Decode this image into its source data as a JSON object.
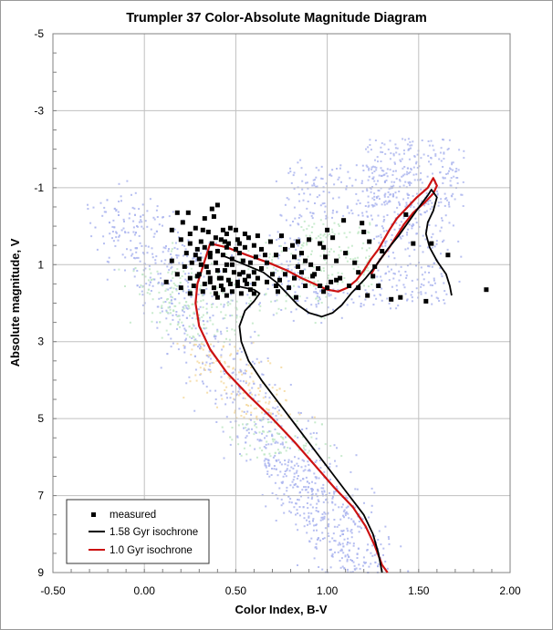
{
  "chart_data": {
    "type": "scatter",
    "title": "Trumpler 37 Color-Absolute Magnitude Diagram",
    "xlabel": "Color Index, B-V",
    "ylabel": "Absolute magnitude, V",
    "xlim": [
      -0.5,
      2.0
    ],
    "ylim": [
      9,
      -5
    ],
    "y_inverted": true,
    "x_ticks": [
      "-0.50",
      "0.00",
      "0.50",
      "1.00",
      "1.50",
      "2.00"
    ],
    "x_tick_values": [
      -0.5,
      0.0,
      0.5,
      1.0,
      1.5,
      2.0
    ],
    "y_ticks": [
      "-5",
      "-3",
      "-1",
      "1",
      "3",
      "5",
      "7",
      "9"
    ],
    "y_tick_values": [
      -5,
      -3,
      -1,
      1,
      3,
      5,
      7,
      9
    ],
    "grid": true,
    "legend_position": "bottom-left",
    "legend": [
      "measured",
      "1.58 Gyr isochrone",
      "1.0 Gyr isochrone"
    ],
    "colors": {
      "measured": "#000000",
      "iso_158": "#000000",
      "iso_10": "#cc1111",
      "grid": "#c0c0c0",
      "density_low": "#aab4ee",
      "density_mid": "#bfe8c6",
      "density_high": "#f4d9a0"
    },
    "series": [
      {
        "name": "measured",
        "kind": "points",
        "points": [
          [
            0.18,
            -0.35
          ],
          [
            0.24,
            -0.35
          ],
          [
            0.4,
            -0.55
          ],
          [
            0.37,
            -0.45
          ],
          [
            0.38,
            -0.25
          ],
          [
            0.21,
            -0.1
          ],
          [
            0.15,
            0.1
          ],
          [
            0.25,
            0.2
          ],
          [
            0.28,
            0.05
          ],
          [
            0.32,
            0.1
          ],
          [
            0.35,
            0.15
          ],
          [
            0.45,
            0.2
          ],
          [
            0.47,
            0.05
          ],
          [
            0.43,
            0.1
          ],
          [
            0.55,
            0.2
          ],
          [
            0.5,
            0.1
          ],
          [
            0.39,
            0.3
          ],
          [
            0.42,
            0.35
          ],
          [
            0.2,
            0.35
          ],
          [
            0.25,
            0.45
          ],
          [
            0.31,
            0.4
          ],
          [
            0.37,
            0.45
          ],
          [
            0.33,
            0.55
          ],
          [
            0.46,
            0.45
          ],
          [
            0.51,
            0.35
          ],
          [
            0.57,
            0.3
          ],
          [
            0.6,
            0.5
          ],
          [
            0.55,
            0.55
          ],
          [
            0.29,
            0.6
          ],
          [
            0.23,
            0.7
          ],
          [
            0.28,
            0.75
          ],
          [
            0.4,
            0.65
          ],
          [
            0.45,
            0.55
          ],
          [
            0.3,
            0.85
          ],
          [
            0.36,
            0.8
          ],
          [
            0.43,
            0.75
          ],
          [
            0.52,
            0.7
          ],
          [
            0.61,
            0.8
          ],
          [
            0.48,
            0.85
          ],
          [
            0.26,
            0.95
          ],
          [
            0.31,
            1.0
          ],
          [
            0.39,
            0.95
          ],
          [
            0.45,
            1.0
          ],
          [
            0.54,
            0.9
          ],
          [
            0.58,
            0.95
          ],
          [
            0.66,
            0.75
          ],
          [
            0.72,
            0.75
          ],
          [
            0.77,
            0.6
          ],
          [
            0.81,
            0.5
          ],
          [
            0.84,
            0.4
          ],
          [
            0.82,
            0.8
          ],
          [
            0.88,
            0.9
          ],
          [
            0.91,
            1.0
          ],
          [
            0.95,
            1.1
          ],
          [
            0.99,
            0.8
          ],
          [
            0.98,
            0.55
          ],
          [
            0.96,
            0.45
          ],
          [
            1.03,
            0.3
          ],
          [
            1.0,
            0.1
          ],
          [
            1.05,
            0.9
          ],
          [
            1.1,
            0.7
          ],
          [
            1.15,
            0.95
          ],
          [
            1.17,
            1.2
          ],
          [
            1.07,
            1.35
          ],
          [
            1.02,
            1.45
          ],
          [
            0.98,
            1.7
          ],
          [
            0.88,
            1.55
          ],
          [
            0.79,
            1.6
          ],
          [
            0.72,
            1.55
          ],
          [
            0.67,
            1.45
          ],
          [
            0.62,
            1.35
          ],
          [
            0.57,
            1.3
          ],
          [
            0.52,
            1.25
          ],
          [
            0.49,
            1.2
          ],
          [
            0.44,
            1.15
          ],
          [
            0.4,
            1.15
          ],
          [
            0.35,
            1.2
          ],
          [
            0.3,
            1.25
          ],
          [
            0.25,
            1.35
          ],
          [
            0.18,
            1.25
          ],
          [
            0.12,
            1.45
          ],
          [
            0.2,
            1.6
          ],
          [
            0.27,
            1.55
          ],
          [
            0.33,
            1.5
          ],
          [
            0.36,
            1.45
          ],
          [
            0.42,
            1.35
          ],
          [
            0.46,
            1.4
          ],
          [
            0.51,
            1.45
          ],
          [
            0.56,
            1.5
          ],
          [
            0.58,
            1.65
          ],
          [
            0.53,
            1.75
          ],
          [
            0.48,
            1.7
          ],
          [
            0.43,
            1.65
          ],
          [
            0.38,
            1.6
          ],
          [
            0.32,
            1.7
          ],
          [
            0.25,
            1.75
          ],
          [
            0.4,
            1.85
          ],
          [
            0.45,
            1.8
          ],
          [
            0.51,
            1.55
          ],
          [
            0.55,
            1.4
          ],
          [
            0.6,
            1.2
          ],
          [
            0.64,
            1.1
          ],
          [
            0.7,
            1.25
          ],
          [
            0.74,
            1.4
          ],
          [
            0.77,
            1.25
          ],
          [
            0.82,
            1.35
          ],
          [
            0.86,
            1.2
          ],
          [
            0.92,
            1.3
          ],
          [
            0.96,
            1.55
          ],
          [
            1.0,
            1.6
          ],
          [
            1.12,
            1.55
          ],
          [
            1.17,
            1.6
          ],
          [
            1.22,
            1.8
          ],
          [
            1.28,
            1.55
          ],
          [
            1.35,
            1.9
          ],
          [
            1.4,
            1.85
          ],
          [
            1.25,
            1.3
          ],
          [
            1.26,
            1.05
          ],
          [
            1.3,
            0.65
          ],
          [
            1.47,
            0.45
          ],
          [
            1.57,
            0.45
          ],
          [
            1.66,
            0.75
          ],
          [
            1.54,
            1.95
          ],
          [
            1.87,
            1.65
          ],
          [
            1.09,
            -0.15
          ],
          [
            1.19,
            -0.08
          ],
          [
            1.43,
            -0.3
          ],
          [
            1.23,
            0.4
          ],
          [
            0.86,
            0.7
          ],
          [
            0.9,
            0.35
          ],
          [
            0.75,
            0.25
          ],
          [
            0.69,
            0.4
          ],
          [
            0.64,
            0.6
          ],
          [
            0.67,
            0.95
          ],
          [
            0.84,
            1.05
          ],
          [
            0.93,
            1.25
          ],
          [
            0.73,
            1.7
          ],
          [
            0.83,
            1.85
          ],
          [
            0.6,
            1.75
          ],
          [
            0.36,
            0.7
          ],
          [
            0.34,
            1.05
          ],
          [
            0.22,
            1.05
          ],
          [
            0.15,
            0.9
          ],
          [
            0.5,
            0.6
          ],
          [
            0.48,
            1.0
          ],
          [
            0.41,
            1.35
          ],
          [
            0.29,
            1.3
          ],
          [
            0.54,
            1.2
          ],
          [
            0.39,
            1.75
          ],
          [
            0.44,
            0.4
          ],
          [
            0.33,
            -0.2
          ],
          [
            0.52,
            0.45
          ],
          [
            0.62,
            0.25
          ],
          [
            1.05,
            1.4
          ],
          [
            1.2,
            0.15
          ],
          [
            0.6,
            1.5
          ],
          [
            0.47,
            1.5
          ],
          [
            0.36,
            1.35
          ],
          [
            0.42,
            1.55
          ]
        ]
      },
      {
        "name": "1.58 Gyr isochrone",
        "kind": "line",
        "points": [
          [
            0.5,
            1.55
          ],
          [
            0.55,
            1.6
          ],
          [
            0.6,
            1.65
          ],
          [
            0.63,
            1.75
          ],
          [
            0.6,
            1.95
          ],
          [
            0.55,
            2.2
          ],
          [
            0.52,
            2.6
          ],
          [
            0.53,
            3.0
          ],
          [
            0.57,
            3.5
          ],
          [
            0.64,
            4.0
          ],
          [
            0.72,
            4.5
          ],
          [
            0.8,
            5.0
          ],
          [
            0.88,
            5.5
          ],
          [
            0.96,
            6.0
          ],
          [
            1.04,
            6.5
          ],
          [
            1.12,
            7.0
          ],
          [
            1.2,
            7.5
          ],
          [
            1.25,
            8.0
          ],
          [
            1.28,
            8.5
          ],
          [
            1.3,
            9.0
          ]
        ],
        "branch": [
          [
            0.42,
            0.75
          ],
          [
            0.55,
            1.0
          ],
          [
            0.65,
            1.2
          ],
          [
            0.72,
            1.45
          ],
          [
            0.78,
            1.75
          ],
          [
            0.84,
            2.05
          ],
          [
            0.9,
            2.25
          ],
          [
            0.97,
            2.35
          ],
          [
            1.03,
            2.25
          ],
          [
            1.08,
            2.05
          ],
          [
            1.13,
            1.75
          ],
          [
            1.17,
            1.55
          ],
          [
            1.21,
            1.35
          ],
          [
            1.27,
            1.0
          ],
          [
            1.33,
            0.6
          ],
          [
            1.39,
            0.25
          ],
          [
            1.45,
            -0.15
          ],
          [
            1.51,
            -0.55
          ],
          [
            1.55,
            -0.8
          ],
          [
            1.57,
            -0.95
          ],
          [
            1.6,
            -0.75
          ],
          [
            1.58,
            -0.4
          ],
          [
            1.55,
            -0.1
          ],
          [
            1.54,
            0.2
          ],
          [
            1.56,
            0.55
          ],
          [
            1.6,
            0.9
          ],
          [
            1.65,
            1.25
          ],
          [
            1.67,
            1.55
          ],
          [
            1.68,
            1.8
          ]
        ]
      },
      {
        "name": "1.0 Gyr isochrone",
        "kind": "line",
        "points": [
          [
            0.36,
            0.45
          ],
          [
            0.45,
            0.55
          ],
          [
            0.56,
            0.75
          ],
          [
            0.68,
            0.95
          ],
          [
            0.78,
            1.15
          ],
          [
            0.86,
            1.35
          ],
          [
            0.93,
            1.5
          ],
          [
            1.0,
            1.65
          ],
          [
            1.06,
            1.7
          ],
          [
            1.11,
            1.6
          ],
          [
            1.16,
            1.4
          ],
          [
            1.2,
            1.15
          ],
          [
            1.24,
            0.85
          ],
          [
            1.28,
            0.6
          ],
          [
            1.31,
            0.35
          ],
          [
            1.34,
            0.1
          ],
          [
            1.38,
            -0.2
          ],
          [
            1.43,
            -0.45
          ],
          [
            1.49,
            -0.75
          ],
          [
            1.55,
            -1.0
          ],
          [
            1.58,
            -1.25
          ],
          [
            1.6,
            -1.05
          ],
          [
            1.58,
            -0.85
          ],
          [
            1.53,
            -0.6
          ],
          [
            1.47,
            -0.35
          ],
          [
            1.42,
            -0.05
          ],
          [
            1.38,
            0.25
          ],
          [
            1.34,
            0.55
          ],
          [
            1.3,
            0.8
          ],
          [
            1.27,
            1.0
          ],
          [
            1.24,
            1.25
          ]
        ],
        "branch": [
          [
            0.36,
            0.45
          ],
          [
            0.33,
            0.9
          ],
          [
            0.29,
            1.5
          ],
          [
            0.28,
            2.0
          ],
          [
            0.3,
            2.6
          ],
          [
            0.36,
            3.2
          ],
          [
            0.45,
            3.8
          ],
          [
            0.57,
            4.4
          ],
          [
            0.7,
            5.0
          ],
          [
            0.82,
            5.6
          ],
          [
            0.93,
            6.2
          ],
          [
            1.04,
            6.8
          ],
          [
            1.14,
            7.3
          ],
          [
            1.21,
            7.8
          ],
          [
            1.26,
            8.3
          ],
          [
            1.3,
            8.8
          ],
          [
            1.33,
            9.0
          ]
        ]
      }
    ]
  }
}
